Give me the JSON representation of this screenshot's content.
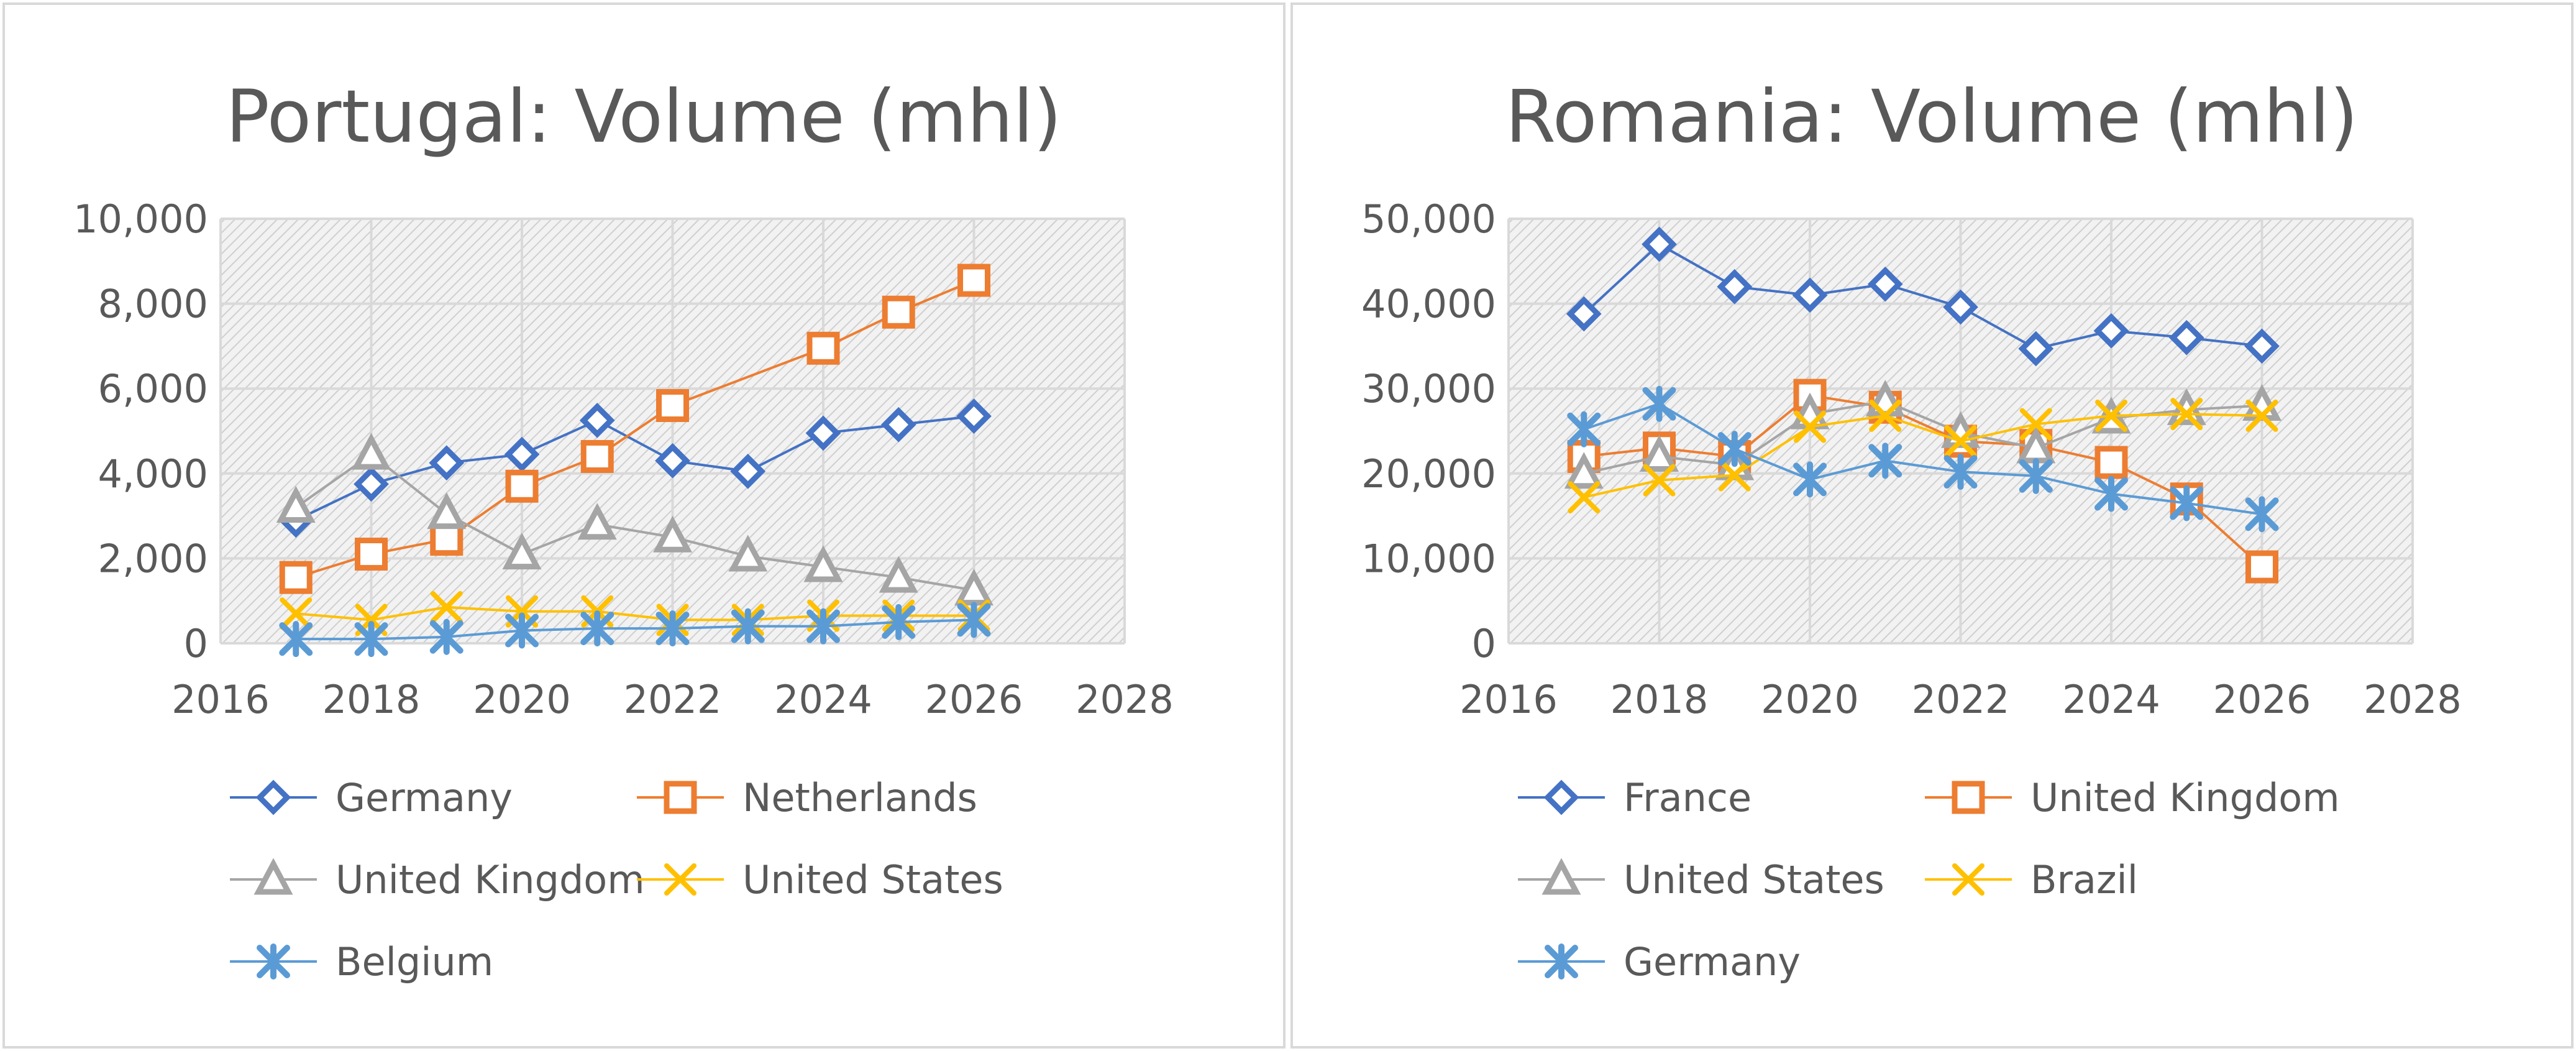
{
  "chart_data": [
    {
      "type": "line",
      "title": "Portugal: Volume (mhl)",
      "xlabel": "",
      "ylabel": "",
      "xlim": [
        2016,
        2028
      ],
      "ylim": [
        0,
        10000
      ],
      "x_ticks": [
        "2016",
        "2018",
        "2020",
        "2022",
        "2024",
        "2026",
        "2028"
      ],
      "y_ticks": [
        "0",
        "2,000",
        "4,000",
        "6,000",
        "8,000",
        "10,000"
      ],
      "grid": true,
      "legend_position": "bottom",
      "series": [
        {
          "name": "Germany",
          "color": "#4472C4",
          "marker": "diamond",
          "x": [
            2017,
            2018,
            2019,
            2020,
            2021,
            2022,
            2023,
            2024,
            2025,
            2026
          ],
          "y": [
            2900,
            3750,
            4250,
            4450,
            5250,
            4300,
            4050,
            4950,
            5150,
            5350
          ]
        },
        {
          "name": "Netherlands",
          "color": "#ED7D31",
          "marker": "square",
          "x": [
            2017,
            2018,
            2019,
            2020,
            2021,
            2022,
            2024,
            2025,
            2026
          ],
          "y": [
            1550,
            2100,
            2450,
            3700,
            4400,
            5600,
            6950,
            7800,
            8550
          ]
        },
        {
          "name": "United Kingdom",
          "color": "#A5A5A5",
          "marker": "triangle",
          "x": [
            2017,
            2018,
            2019,
            2020,
            2021,
            2022,
            2023,
            2024,
            2025,
            2026
          ],
          "y": [
            3200,
            4450,
            3050,
            2100,
            2800,
            2500,
            2050,
            1800,
            1550,
            1250
          ]
        },
        {
          "name": "United States",
          "color": "#FFC000",
          "marker": "x",
          "x": [
            2017,
            2018,
            2019,
            2020,
            2021,
            2022,
            2023,
            2024,
            2025,
            2026
          ],
          "y": [
            700,
            550,
            850,
            750,
            750,
            550,
            550,
            650,
            650,
            650
          ]
        },
        {
          "name": "Belgium",
          "color": "#5B9BD5",
          "marker": "star",
          "x": [
            2017,
            2018,
            2019,
            2020,
            2021,
            2022,
            2023,
            2024,
            2025,
            2026
          ],
          "y": [
            100,
            100,
            150,
            300,
            350,
            350,
            400,
            400,
            500,
            550
          ]
        }
      ]
    },
    {
      "type": "line",
      "title": "Romania: Volume (mhl)",
      "xlabel": "",
      "ylabel": "",
      "xlim": [
        2016,
        2028
      ],
      "ylim": [
        0,
        50000
      ],
      "x_ticks": [
        "2016",
        "2018",
        "2020",
        "2022",
        "2024",
        "2026",
        "2028"
      ],
      "y_ticks": [
        "0",
        "10,000",
        "20,000",
        "30,000",
        "40,000",
        "50,000"
      ],
      "grid": true,
      "legend_position": "bottom",
      "series": [
        {
          "name": "France",
          "color": "#4472C4",
          "marker": "diamond",
          "x": [
            2017,
            2018,
            2019,
            2020,
            2021,
            2022,
            2023,
            2024,
            2025,
            2026
          ],
          "y": [
            38800,
            47000,
            42000,
            41000,
            42300,
            39600,
            34700,
            36800,
            36000,
            35000
          ]
        },
        {
          "name": "United Kingdom",
          "color": "#ED7D31",
          "marker": "square",
          "x": [
            2017,
            2018,
            2019,
            2020,
            2021,
            2022,
            2023,
            2024,
            2025,
            2026
          ],
          "y": [
            22000,
            23000,
            22000,
            29200,
            27800,
            23800,
            23300,
            21300,
            17000,
            9000
          ]
        },
        {
          "name": "United States",
          "color": "#A5A5A5",
          "marker": "triangle",
          "x": [
            2017,
            2018,
            2019,
            2020,
            2021,
            2022,
            2023,
            2024,
            2025,
            2026
          ],
          "y": [
            20000,
            22000,
            21000,
            27000,
            28500,
            24800,
            23000,
            26500,
            27500,
            28000
          ]
        },
        {
          "name": "Brazil",
          "color": "#FFC000",
          "marker": "x",
          "x": [
            2017,
            2018,
            2019,
            2020,
            2021,
            2022,
            2023,
            2024,
            2025,
            2026
          ],
          "y": [
            17200,
            19200,
            19800,
            25500,
            26800,
            23800,
            25800,
            26800,
            27000,
            26800
          ]
        },
        {
          "name": "Germany",
          "color": "#5B9BD5",
          "marker": "star",
          "x": [
            2017,
            2018,
            2019,
            2020,
            2021,
            2022,
            2023,
            2024,
            2025,
            2026
          ],
          "y": [
            25200,
            28200,
            22900,
            19300,
            21500,
            20200,
            19700,
            17600,
            16500,
            15200
          ]
        }
      ]
    }
  ]
}
